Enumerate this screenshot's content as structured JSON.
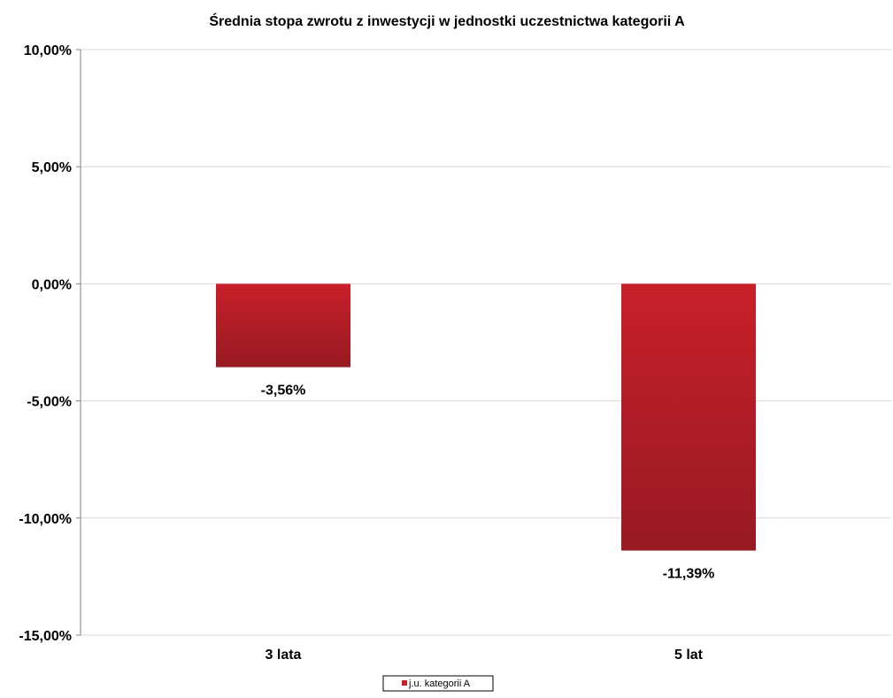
{
  "chart_data": {
    "type": "bar",
    "title": "Średnia stopa zwrotu z inwestycji w jednostki uczestnictwa kategorii A",
    "categories": [
      "3 lata",
      "5 lat"
    ],
    "series": [
      {
        "name": "j.u. kategorii A",
        "values": [
          -3.56,
          -11.39
        ],
        "data_labels": [
          "-3,56%",
          "-11,39%"
        ],
        "color": "#c8202a",
        "color_dark": "#981a22"
      }
    ],
    "ylim": [
      -15,
      10
    ],
    "yticks": [
      10,
      5,
      0,
      -5,
      -10,
      -15
    ],
    "ytick_labels": [
      "10,00%",
      "5,00%",
      "0,00%",
      "-5,00%",
      "-10,00%",
      "-15,00%"
    ],
    "xlabel": "",
    "ylabel": "",
    "grid": true,
    "legend": "bottom-center"
  }
}
